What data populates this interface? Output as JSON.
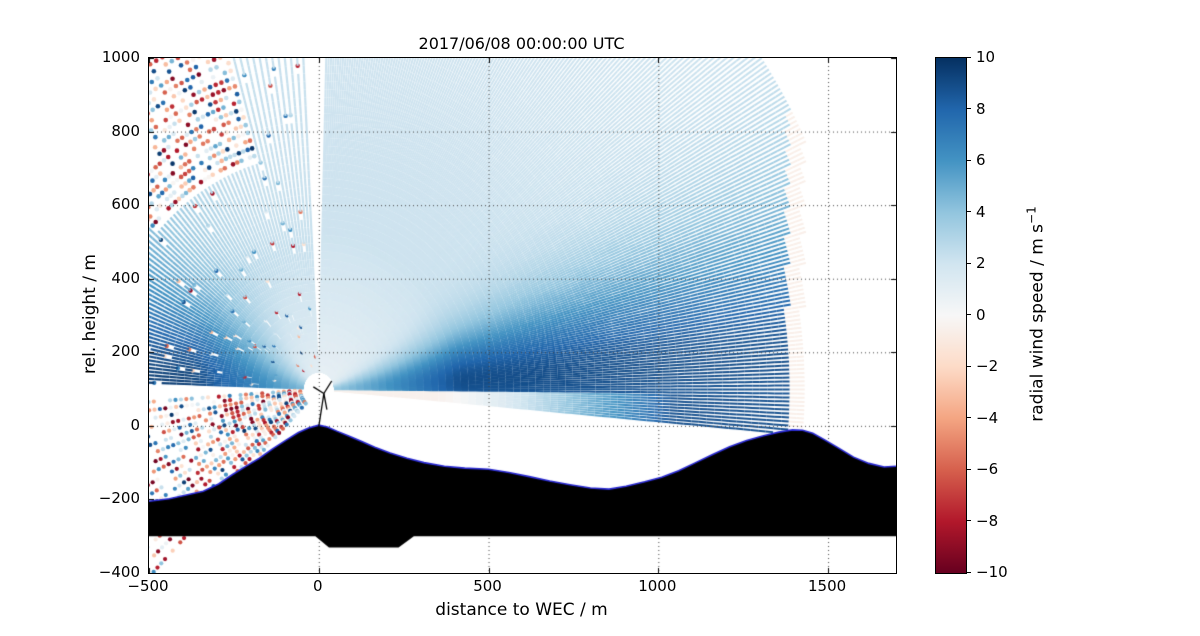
{
  "title": "2017/06/08 00:00:00 UTC",
  "axes": {
    "xlabel": "distance to WEC / m",
    "ylabel": "rel. height / m",
    "xticks": [
      {
        "v": -500,
        "label": "−500"
      },
      {
        "v": 0,
        "label": "0"
      },
      {
        "v": 500,
        "label": "500"
      },
      {
        "v": 1000,
        "label": "1000"
      },
      {
        "v": 1500,
        "label": "1500"
      }
    ],
    "yticks": [
      {
        "v": -400,
        "label": "−400"
      },
      {
        "v": -200,
        "label": "−200"
      },
      {
        "v": 0,
        "label": "0"
      },
      {
        "v": 200,
        "label": "200"
      },
      {
        "v": 400,
        "label": "400"
      },
      {
        "v": 600,
        "label": "600"
      },
      {
        "v": 800,
        "label": "800"
      },
      {
        "v": 1000,
        "label": "1000"
      }
    ]
  },
  "colorbar": {
    "label_text": "radial wind speed / m s",
    "label_sup": "−1",
    "min": -10,
    "max": 10,
    "colormap": "RdBu",
    "ticks": [
      {
        "v": 10,
        "label": "10"
      },
      {
        "v": 8,
        "label": "8"
      },
      {
        "v": 6,
        "label": "6"
      },
      {
        "v": 4,
        "label": "4"
      },
      {
        "v": 2,
        "label": "2"
      },
      {
        "v": 0,
        "label": "0"
      },
      {
        "v": -2,
        "label": "−2"
      },
      {
        "v": -4,
        "label": "−4"
      },
      {
        "v": -6,
        "label": "−6"
      },
      {
        "v": -8,
        "label": "−8"
      },
      {
        "v": -10,
        "label": "−10"
      }
    ],
    "stops": [
      {
        "v": 10,
        "c": "#053061"
      },
      {
        "v": 8,
        "c": "#2166ac"
      },
      {
        "v": 6,
        "c": "#4393c3"
      },
      {
        "v": 4,
        "c": "#92c5de"
      },
      {
        "v": 2,
        "c": "#d1e5f0"
      },
      {
        "v": 0,
        "c": "#f7f7f7"
      },
      {
        "v": -2,
        "c": "#fddbc7"
      },
      {
        "v": -4,
        "c": "#f4a582"
      },
      {
        "v": -6,
        "c": "#d6604d"
      },
      {
        "v": -8,
        "c": "#b2182b"
      },
      {
        "v": -10,
        "c": "#67001f"
      }
    ]
  },
  "chart_data": {
    "type": "heatmap",
    "subtype": "lidar-rhi-scan",
    "description": "Vertical cross-section of lidar-measured radial wind speed around a wind energy converter (WEC) on a hill. Scan beams fan out from the nacelle-mounted lidar at x=0, ~100 m relative height. Mostly positive (blue) radial wind speeds up to ~9-10 m/s in a near-horizontal wedge reaching the downwind hill at x~1400 m; lighter blue (~2-4 m/s) at steep elevations; noisy red/blue range gates at far range on the left side and below/above the terrain; black silhouette is the terrain profile with a blue surface line; pale near-zero terminal gates form a vertical stripe at x~1400 m.",
    "title": "2017/06/08 00:00:00 UTC",
    "xlabel": "distance to WEC / m",
    "ylabel": "rel. height / m",
    "colorbar_label": "radial wind speed / m s⁻¹",
    "xlim": [
      -500,
      1700
    ],
    "ylim": [
      -400,
      1000
    ],
    "clim": [
      -10,
      10
    ],
    "colormap": "RdBu",
    "grid": "dotted",
    "grid_x": [
      0,
      500,
      1000,
      1500
    ],
    "grid_y": [
      -200,
      0,
      200,
      400,
      600,
      800
    ],
    "scan": {
      "origin": {
        "x": 0,
        "y": 100
      },
      "right_fan": {
        "elev_min": -5,
        "elev_max": 89,
        "elev_step": 0.45,
        "range_max": 1600,
        "x_terminal": 1437,
        "x_pale": 1380,
        "terminal_value": -0.6,
        "peak_value": 8.9,
        "background_value": 2.1,
        "peak_elev": 3,
        "elev_sigma": 12
      },
      "left_fan": {
        "a_min": 2,
        "a_max": 88,
        "a_step": 1.15,
        "range_max": 1400,
        "peak_value": 9.5,
        "background_value": 2.3,
        "a_sigma": 26,
        "noise_a_min": 42,
        "noise_a_max": 74,
        "noise_range": 640
      },
      "down_left_fan": {
        "b_min": 4,
        "b_max": 48,
        "b_step": 2.6,
        "range_max": 1050
      }
    },
    "terrain": [
      [
        -500,
        -205
      ],
      [
        -440,
        -198
      ],
      [
        -390,
        -188
      ],
      [
        -340,
        -178
      ],
      [
        -295,
        -158
      ],
      [
        -255,
        -133
      ],
      [
        -215,
        -110
      ],
      [
        -175,
        -88
      ],
      [
        -135,
        -62
      ],
      [
        -95,
        -38
      ],
      [
        -60,
        -18
      ],
      [
        -30,
        -6
      ],
      [
        0,
        2
      ],
      [
        25,
        -3
      ],
      [
        55,
        -15
      ],
      [
        90,
        -28
      ],
      [
        125,
        -42
      ],
      [
        165,
        -58
      ],
      [
        210,
        -74
      ],
      [
        260,
        -88
      ],
      [
        310,
        -100
      ],
      [
        370,
        -110
      ],
      [
        430,
        -115
      ],
      [
        500,
        -118
      ],
      [
        560,
        -127
      ],
      [
        620,
        -138
      ],
      [
        680,
        -150
      ],
      [
        740,
        -160
      ],
      [
        800,
        -169
      ],
      [
        855,
        -172
      ],
      [
        905,
        -164
      ],
      [
        960,
        -152
      ],
      [
        1010,
        -140
      ],
      [
        1060,
        -122
      ],
      [
        1110,
        -100
      ],
      [
        1160,
        -78
      ],
      [
        1210,
        -57
      ],
      [
        1260,
        -40
      ],
      [
        1310,
        -27
      ],
      [
        1355,
        -17
      ],
      [
        1395,
        -11
      ],
      [
        1425,
        -12
      ],
      [
        1455,
        -20
      ],
      [
        1490,
        -38
      ],
      [
        1530,
        -60
      ],
      [
        1575,
        -85
      ],
      [
        1620,
        -102
      ],
      [
        1665,
        -112
      ],
      [
        1700,
        -110
      ]
    ],
    "terrain_bottom": [
      [
        1700,
        -300
      ],
      [
        280,
        -300
      ],
      [
        235,
        -331
      ],
      [
        30,
        -331
      ],
      [
        -10,
        -300
      ],
      [
        -500,
        -300
      ]
    ],
    "turbine": {
      "tower": [
        [
          0,
          -2
        ],
        [
          15,
          88
        ]
      ],
      "blades": [
        [
          [
            15,
            88
          ],
          [
            38,
            122
          ]
        ],
        [
          [
            15,
            88
          ],
          [
            -16,
            106
          ]
        ],
        [
          [
            15,
            88
          ],
          [
            24,
            44
          ]
        ]
      ]
    },
    "colors": {
      "terrain_fill": "#000000",
      "terrain_outline": "#2a2ad4",
      "background": "#ffffff",
      "grid": "#444444"
    }
  }
}
